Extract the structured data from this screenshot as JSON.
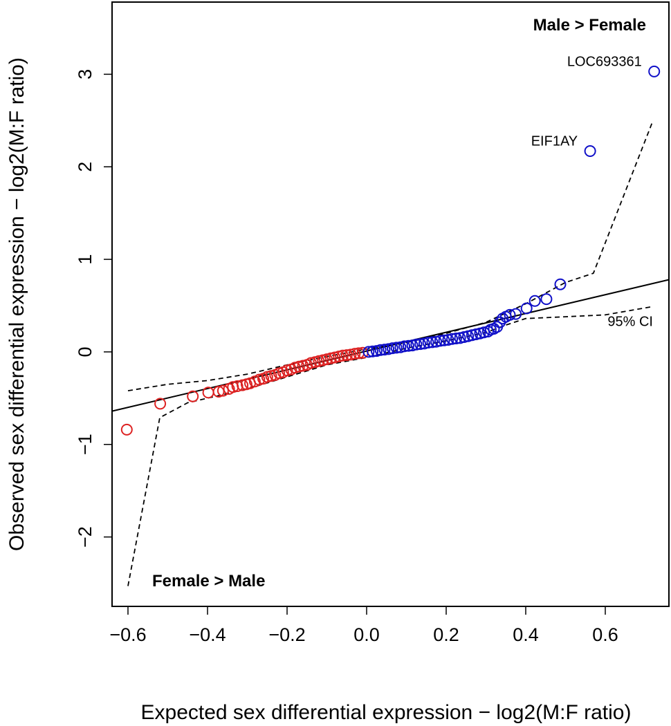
{
  "chart_data": {
    "type": "scatter",
    "title": "",
    "xlabel": "Expected sex differential expression − log2(M:F ratio)",
    "ylabel": "Observed sex differential expression − log2(M:F ratio)",
    "xlim": [
      -0.64,
      0.76
    ],
    "ylim": [
      -2.75,
      3.78
    ],
    "x_ticks": [
      -0.6,
      -0.4,
      -0.2,
      0.0,
      0.2,
      0.4,
      0.6
    ],
    "x_tick_labels": [
      "−0.6",
      "−0.4",
      "−0.2",
      "0.0",
      "0.2",
      "0.4",
      "0.6"
    ],
    "y_ticks": [
      -2,
      -1,
      0,
      1,
      2,
      3
    ],
    "y_tick_labels": [
      "−2",
      "−1",
      "0",
      "1",
      "2",
      "3"
    ],
    "grid": false,
    "colors": {
      "female": "#dd2222",
      "male": "#1010c8",
      "line": "#000000"
    },
    "series": [
      {
        "name": "Female > Male genes",
        "color": "#dd2222",
        "points": [
          [
            -0.603,
            -0.84
          ],
          [
            -0.519,
            -0.56
          ],
          [
            -0.437,
            -0.48
          ],
          [
            -0.398,
            -0.44
          ],
          [
            -0.372,
            -0.43
          ],
          [
            -0.361,
            -0.42
          ],
          [
            -0.346,
            -0.4
          ],
          [
            -0.336,
            -0.38
          ],
          [
            -0.325,
            -0.37
          ],
          [
            -0.312,
            -0.36
          ],
          [
            -0.302,
            -0.35
          ],
          [
            -0.293,
            -0.34
          ],
          [
            -0.281,
            -0.32
          ],
          [
            -0.27,
            -0.3
          ],
          [
            -0.26,
            -0.29
          ],
          [
            -0.25,
            -0.27
          ],
          [
            -0.24,
            -0.26
          ],
          [
            -0.23,
            -0.25
          ],
          [
            -0.22,
            -0.23
          ],
          [
            -0.21,
            -0.22
          ],
          [
            -0.2,
            -0.2
          ],
          [
            -0.19,
            -0.19
          ],
          [
            -0.18,
            -0.17
          ],
          [
            -0.17,
            -0.16
          ],
          [
            -0.16,
            -0.15
          ],
          [
            -0.15,
            -0.14
          ],
          [
            -0.14,
            -0.12
          ],
          [
            -0.13,
            -0.11
          ],
          [
            -0.12,
            -0.1
          ],
          [
            -0.11,
            -0.09
          ],
          [
            -0.1,
            -0.08
          ],
          [
            -0.09,
            -0.07
          ],
          [
            -0.08,
            -0.06
          ],
          [
            -0.07,
            -0.05
          ],
          [
            -0.06,
            -0.04
          ],
          [
            -0.05,
            -0.035
          ],
          [
            -0.04,
            -0.03
          ],
          [
            -0.03,
            -0.02
          ],
          [
            -0.02,
            -0.015
          ],
          [
            -0.01,
            -0.01
          ]
        ]
      },
      {
        "name": "Male > Female genes",
        "color": "#1010c8",
        "points": [
          [
            0.005,
            0.0
          ],
          [
            0.015,
            0.005
          ],
          [
            0.025,
            0.01
          ],
          [
            0.035,
            0.02
          ],
          [
            0.045,
            0.025
          ],
          [
            0.055,
            0.03
          ],
          [
            0.065,
            0.04
          ],
          [
            0.075,
            0.045
          ],
          [
            0.085,
            0.05
          ],
          [
            0.095,
            0.06
          ],
          [
            0.105,
            0.065
          ],
          [
            0.115,
            0.07
          ],
          [
            0.125,
            0.08
          ],
          [
            0.135,
            0.085
          ],
          [
            0.145,
            0.09
          ],
          [
            0.155,
            0.1
          ],
          [
            0.165,
            0.105
          ],
          [
            0.175,
            0.11
          ],
          [
            0.185,
            0.12
          ],
          [
            0.195,
            0.125
          ],
          [
            0.205,
            0.13
          ],
          [
            0.215,
            0.14
          ],
          [
            0.225,
            0.145
          ],
          [
            0.235,
            0.15
          ],
          [
            0.245,
            0.16
          ],
          [
            0.255,
            0.17
          ],
          [
            0.265,
            0.18
          ],
          [
            0.275,
            0.19
          ],
          [
            0.285,
            0.2
          ],
          [
            0.295,
            0.21
          ],
          [
            0.305,
            0.22
          ],
          [
            0.312,
            0.24
          ],
          [
            0.32,
            0.25
          ],
          [
            0.328,
            0.27
          ],
          [
            0.335,
            0.32
          ],
          [
            0.342,
            0.36
          ],
          [
            0.35,
            0.38
          ],
          [
            0.36,
            0.4
          ],
          [
            0.375,
            0.41
          ],
          [
            0.402,
            0.47
          ],
          [
            0.423,
            0.55
          ],
          [
            0.452,
            0.57
          ],
          [
            0.487,
            0.73
          ],
          [
            0.562,
            2.17
          ],
          [
            0.723,
            3.03
          ]
        ]
      }
    ],
    "reference_line": {
      "name": "y = x",
      "from": [
        -0.64,
        -0.64
      ],
      "to": [
        0.76,
        0.78
      ]
    },
    "ci_upper": [
      [
        -0.6,
        -0.42
      ],
      [
        -0.5,
        -0.35
      ],
      [
        -0.4,
        -0.31
      ],
      [
        -0.3,
        -0.24
      ],
      [
        -0.2,
        -0.14
      ],
      [
        -0.1,
        -0.05
      ],
      [
        0.0,
        0.03
      ],
      [
        0.1,
        0.1
      ],
      [
        0.2,
        0.2
      ],
      [
        0.3,
        0.32
      ],
      [
        0.4,
        0.52
      ],
      [
        0.5,
        0.75
      ],
      [
        0.57,
        0.85
      ],
      [
        0.72,
        2.5
      ]
    ],
    "ci_lower": [
      [
        -0.6,
        -2.53
      ],
      [
        -0.52,
        -0.71
      ],
      [
        -0.45,
        -0.55
      ],
      [
        -0.4,
        -0.5
      ],
      [
        -0.3,
        -0.4
      ],
      [
        -0.2,
        -0.27
      ],
      [
        -0.1,
        -0.14
      ],
      [
        0.0,
        -0.06
      ],
      [
        0.1,
        0.04
      ],
      [
        0.2,
        0.12
      ],
      [
        0.3,
        0.21
      ],
      [
        0.35,
        0.29
      ],
      [
        0.4,
        0.36
      ],
      [
        0.5,
        0.38
      ],
      [
        0.6,
        0.4
      ],
      [
        0.72,
        0.49
      ]
    ],
    "annotations": [
      {
        "text": "LOC693361",
        "x": 0.723,
        "y": 3.03,
        "anchor": "left-of-point"
      },
      {
        "text": "EIF1AY",
        "x": 0.562,
        "y": 2.17,
        "anchor": "left-of-point"
      },
      {
        "text": "95% CI",
        "x": 0.72,
        "y": 0.49,
        "anchor": "below-left"
      }
    ],
    "region_labels": {
      "top_right": "Male > Female",
      "bottom_left": "Female > Male"
    }
  }
}
